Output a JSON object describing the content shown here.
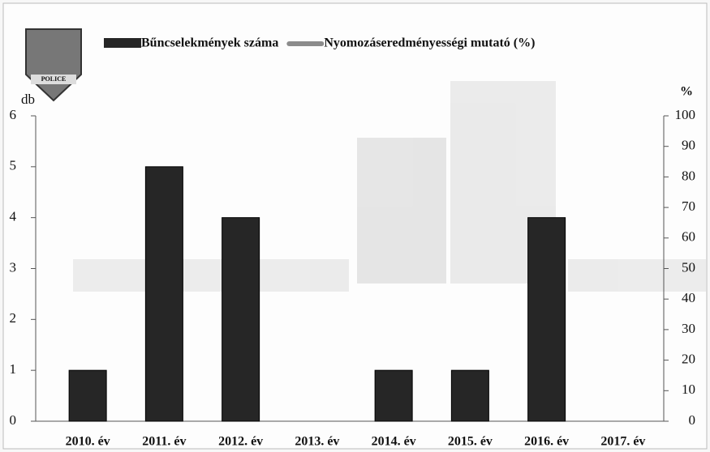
{
  "chart_data": {
    "type": "bar",
    "categories": [
      "2010. év",
      "2011. év",
      "2012. év",
      "2013. év",
      "2014. év",
      "2015. év",
      "2016. év",
      "2017. év"
    ],
    "series": [
      {
        "name": "Bűncselekmények száma",
        "color": "#262626",
        "values": [
          1,
          5,
          4,
          0,
          1,
          1,
          4,
          0
        ]
      },
      {
        "name": "Nyomozáseredményességi mutató (%)",
        "color": "#8c8c8c",
        "axis": "y2",
        "values": [
          null,
          null,
          null,
          null,
          null,
          null,
          null,
          null
        ]
      }
    ],
    "ylabel": "db",
    "y2label": "%",
    "ylim": [
      0,
      6
    ],
    "yticks": [
      0,
      1,
      2,
      3,
      4,
      5,
      6
    ],
    "y2lim": [
      0,
      100
    ],
    "y2ticks": [
      0,
      10,
      20,
      30,
      40,
      50,
      60,
      70,
      80,
      90,
      100
    ],
    "logo_text": "POLICE"
  }
}
